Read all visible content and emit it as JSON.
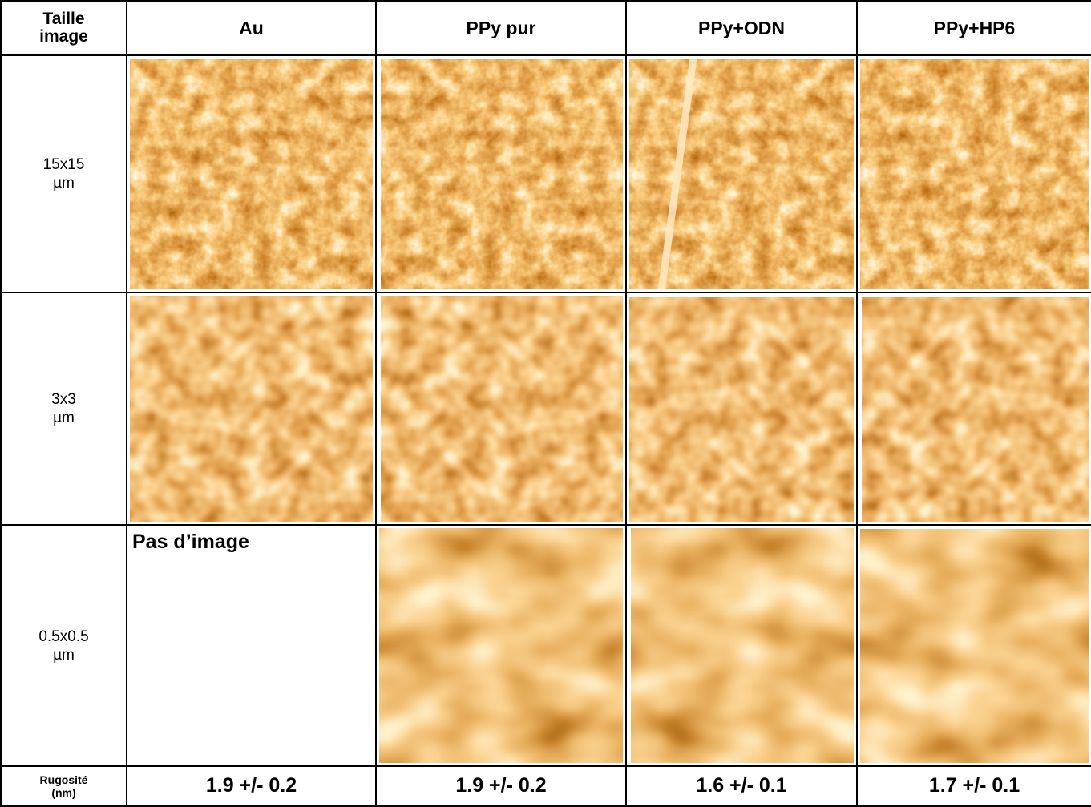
{
  "table": {
    "header": [
      "Taille image",
      "Au",
      "PPy pur",
      "PPy+ODN",
      "PPy+HP6"
    ],
    "rows": [
      {
        "label": "15x15 µm"
      },
      {
        "label": "3x3 µm"
      },
      {
        "label": "0.5x0.5 µm",
        "note": "Pas d’image"
      }
    ],
    "roughness": {
      "label": "Rugosité (nm)",
      "values": [
        "1.9 +/- 0.2",
        "1.9 +/- 0.2",
        "1.6 +/- 0.1",
        "1.7 +/- 0.1"
      ]
    }
  }
}
